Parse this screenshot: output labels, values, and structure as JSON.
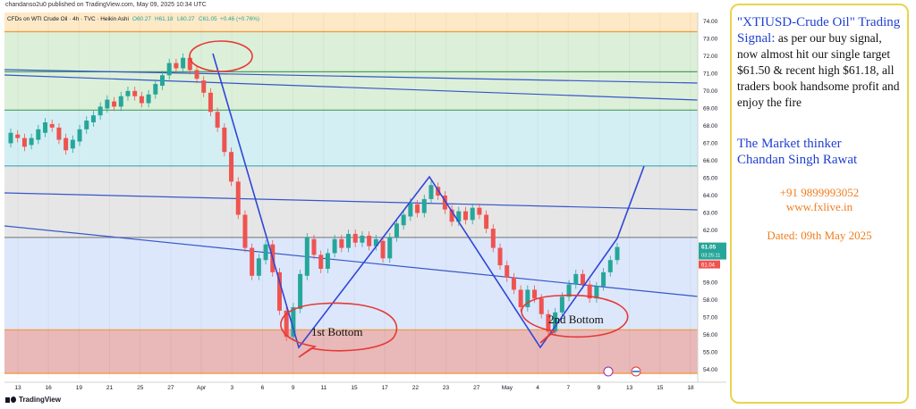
{
  "header": {
    "publisher": "chandanso2u0 published on TradingView.com, May 09, 2025 10:34 UTC",
    "symbol_line": "CFDs on WTI Crude Oil · 4h · TVC · Heikin Ashi",
    "ohlc": {
      "O": "O60.27",
      "H": "H61.18",
      "L": "L60.27",
      "C": "C61.05",
      "change": "+0.46 (+0.76%)"
    }
  },
  "brand": {
    "name": "TradingView"
  },
  "colors": {
    "band_orange": "#fde9c6",
    "band_green": "#dcefd9",
    "band_cyan": "#d3eff3",
    "band_gray": "#e6e6e6",
    "band_blue": "#dce7fb",
    "band_red": "#e9b8b8",
    "candle_up": "#26a69a",
    "candle_down": "#ef5350",
    "trend_line": "#3656c9",
    "zigzag": "#2f46d8",
    "circle": "#e53935",
    "hline_green": "#4c9f60",
    "hline_cyan": "#3fa7b8",
    "hline_gray": "#888888",
    "hline_orange": "#f0983a"
  },
  "chart_data": {
    "type": "candlestick",
    "ylim": [
      53.5,
      74.5
    ],
    "y_ticks": [
      "74.00",
      "73.00",
      "72.00",
      "71.00",
      "70.00",
      "69.00",
      "68.00",
      "67.00",
      "66.00",
      "65.00",
      "64.00",
      "63.00",
      "62.00",
      "61.00",
      "60.00",
      "59.00",
      "58.00",
      "57.00",
      "56.00",
      "55.00",
      "54.00"
    ],
    "x_ticks": [
      "13",
      "16",
      "19",
      "21",
      "25",
      "27",
      "Apr",
      "3",
      "6",
      "9",
      "11",
      "15",
      "17",
      "22",
      "23",
      "27",
      "May",
      "4",
      "7",
      "9",
      "13",
      "15",
      "18"
    ],
    "price_badges": {
      "last": "61.05",
      "countdown": "03:25:11",
      "low_badge": "61.04"
    },
    "zones": [
      {
        "from": 73.4,
        "to": 74.5,
        "color_key": "band_orange"
      },
      {
        "from": 71.1,
        "to": 73.4,
        "color_key": "band_green"
      },
      {
        "from": 68.9,
        "to": 71.1,
        "color_key": "band_green"
      },
      {
        "from": 65.7,
        "to": 68.9,
        "color_key": "band_cyan"
      },
      {
        "from": 61.6,
        "to": 65.7,
        "color_key": "band_gray"
      },
      {
        "from": 56.3,
        "to": 61.6,
        "color_key": "band_blue"
      },
      {
        "from": 53.8,
        "to": 56.3,
        "color_key": "band_red"
      }
    ],
    "horizontal_levels": [
      73.4,
      71.1,
      68.9,
      65.7,
      61.6,
      56.3,
      53.8
    ],
    "annotations": [
      {
        "label": "1st Bottom"
      },
      {
        "label": "2nd Bottom"
      }
    ],
    "candles": [
      [
        0,
        67.0,
        67.6
      ],
      [
        1,
        67.5,
        67.3
      ],
      [
        2,
        67.3,
        66.8
      ],
      [
        3,
        66.9,
        67.3
      ],
      [
        4,
        67.2,
        67.8
      ],
      [
        5,
        67.6,
        68.2
      ],
      [
        6,
        68.1,
        67.9
      ],
      [
        7,
        67.9,
        67.2
      ],
      [
        8,
        67.3,
        66.6
      ],
      [
        9,
        66.7,
        67.2
      ],
      [
        10,
        67.1,
        67.8
      ],
      [
        11,
        67.8,
        68.3
      ],
      [
        12,
        68.2,
        68.6
      ],
      [
        13,
        68.6,
        69.1
      ],
      [
        14,
        69.0,
        69.5
      ],
      [
        15,
        69.4,
        69.1
      ],
      [
        16,
        69.1,
        69.7
      ],
      [
        17,
        69.7,
        70.0
      ],
      [
        18,
        70.0,
        69.7
      ],
      [
        19,
        69.7,
        69.3
      ],
      [
        20,
        69.3,
        69.8
      ],
      [
        21,
        69.8,
        70.4
      ],
      [
        22,
        70.3,
        70.9
      ],
      [
        23,
        70.9,
        71.6
      ],
      [
        24,
        71.6,
        71.3
      ],
      [
        25,
        71.3,
        71.9
      ],
      [
        26,
        71.9,
        71.2
      ],
      [
        27,
        71.2,
        70.7
      ],
      [
        28,
        70.6,
        69.9
      ],
      [
        29,
        69.9,
        68.8
      ],
      [
        30,
        68.8,
        67.9
      ],
      [
        31,
        67.9,
        66.5
      ],
      [
        32,
        66.5,
        64.8
      ],
      [
        33,
        64.8,
        62.9
      ],
      [
        34,
        62.9,
        61.0
      ],
      [
        35,
        61.0,
        59.4
      ],
      [
        36,
        59.4,
        60.4
      ],
      [
        37,
        60.3,
        61.2
      ],
      [
        38,
        61.2,
        59.6
      ],
      [
        39,
        59.6,
        57.4
      ],
      [
        40,
        57.4,
        55.9
      ],
      [
        41,
        55.9,
        57.6
      ],
      [
        42,
        57.5,
        59.5
      ],
      [
        43,
        59.4,
        61.6
      ],
      [
        44,
        61.5,
        60.6
      ],
      [
        45,
        60.6,
        59.8
      ],
      [
        46,
        59.8,
        60.7
      ],
      [
        47,
        60.7,
        61.5
      ],
      [
        48,
        61.5,
        61.0
      ],
      [
        49,
        61.0,
        61.8
      ],
      [
        50,
        61.8,
        61.3
      ],
      [
        51,
        61.3,
        61.7
      ],
      [
        52,
        61.7,
        61.1
      ],
      [
        53,
        61.1,
        61.5
      ],
      [
        54,
        61.4,
        60.4
      ],
      [
        55,
        60.4,
        61.6
      ],
      [
        56,
        61.6,
        62.4
      ],
      [
        57,
        62.3,
        62.9
      ],
      [
        58,
        62.8,
        63.6
      ],
      [
        59,
        63.5,
        63.0
      ],
      [
        60,
        63.0,
        63.8
      ],
      [
        61,
        63.8,
        64.6
      ],
      [
        62,
        64.5,
        64.0
      ],
      [
        63,
        64.0,
        63.2
      ],
      [
        64,
        63.2,
        62.5
      ],
      [
        65,
        62.5,
        63.1
      ],
      [
        66,
        63.1,
        62.6
      ],
      [
        67,
        62.6,
        63.3
      ],
      [
        68,
        63.3,
        62.9
      ],
      [
        69,
        62.9,
        62.1
      ],
      [
        70,
        62.1,
        61.0
      ],
      [
        71,
        61.0,
        60.0
      ],
      [
        72,
        60.0,
        59.3
      ],
      [
        73,
        59.3,
        58.6
      ],
      [
        74,
        58.6,
        57.6
      ],
      [
        75,
        57.6,
        58.6
      ],
      [
        76,
        58.6,
        58.1
      ],
      [
        77,
        58.1,
        57.2
      ],
      [
        78,
        57.2,
        56.2
      ],
      [
        79,
        56.2,
        57.3
      ],
      [
        80,
        57.3,
        58.2
      ],
      [
        81,
        58.2,
        58.9
      ],
      [
        82,
        58.9,
        59.5
      ],
      [
        83,
        59.5,
        58.9
      ],
      [
        84,
        58.9,
        58.1
      ],
      [
        85,
        58.1,
        58.8
      ],
      [
        86,
        58.8,
        59.6
      ],
      [
        87,
        59.6,
        60.3
      ],
      [
        88,
        60.3,
        61.05
      ]
    ]
  },
  "info": {
    "title": "\"XTIUSD-Crude Oil\" Trading Signal:",
    "body": " as per our buy signal, now almost hit our single target $61.50 & recent high $61.18, all traders book handsome profit and enjoy the fire",
    "thinker_line1": "The Market thinker",
    "thinker_line2": "Chandan Singh Rawat",
    "phone": "+91 9899993052",
    "website": "www.fxlive.in",
    "dated": "Dated: 09th May 2025"
  }
}
